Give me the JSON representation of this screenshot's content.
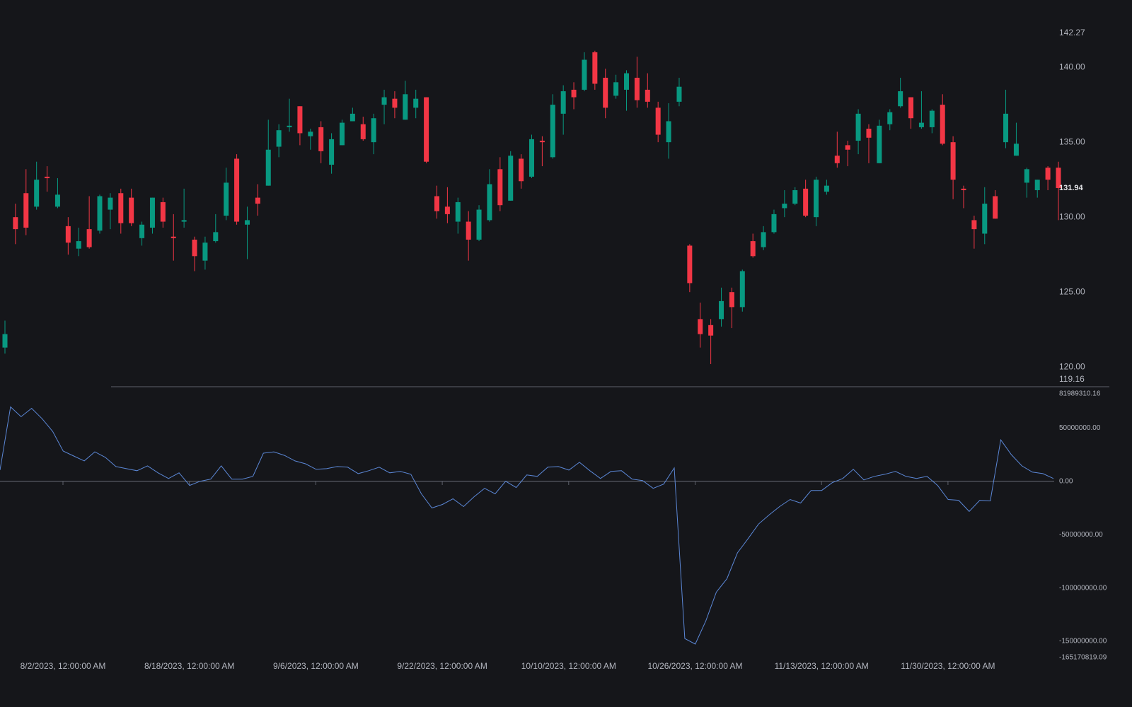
{
  "chart_data": [
    {
      "type": "candlestick",
      "up_color": "#089981",
      "down_color": "#f23645",
      "open": [
        121.3,
        130.0,
        131.6,
        130.7,
        132.7,
        130.7,
        129.4,
        127.9,
        129.2,
        129.1,
        130.5,
        131.6,
        131.3,
        128.6,
        129.3,
        131.0,
        128.7,
        129.7,
        128.5,
        127.1,
        128.4,
        130.1,
        133.9,
        129.5,
        131.3,
        132.1,
        134.7,
        136.0,
        137.4,
        135.4,
        136.0,
        133.5,
        134.8,
        136.4,
        136.2,
        135.0,
        137.5,
        137.9,
        136.5,
        137.3,
        138.0,
        131.4,
        130.7,
        129.7,
        129.7,
        128.5,
        129.8,
        133.2,
        131.1,
        133.9,
        132.7,
        135.1,
        134.0,
        136.9,
        138.5,
        138.5,
        141.0,
        139.3,
        138.1,
        138.5,
        139.3,
        138.5,
        137.3,
        135.0,
        137.7,
        128.1,
        123.2,
        122.8,
        123.2,
        125.0,
        124.0,
        128.4,
        128.0,
        129.0,
        130.6,
        130.9,
        131.9,
        130.0,
        131.7,
        134.1,
        134.8,
        135.1,
        135.9,
        133.6,
        136.2,
        137.4,
        138.0,
        136.0,
        136.0,
        137.5,
        135.0,
        131.9,
        129.8,
        128.9,
        131.4,
        135.0,
        134.1,
        132.3,
        131.8,
        133.3,
        133.3
      ],
      "high": [
        123.1,
        130.9,
        133.2,
        133.7,
        133.4,
        132.6,
        130.0,
        129.3,
        131.4,
        131.5,
        131.6,
        131.9,
        131.9,
        129.7,
        131.3,
        131.3,
        130.2,
        131.9,
        128.7,
        128.7,
        130.2,
        133.3,
        134.2,
        130.7,
        132.2,
        136.5,
        136.2,
        137.9,
        137.4,
        135.9,
        136.4,
        135.6,
        136.5,
        137.3,
        136.7,
        136.9,
        138.5,
        138.4,
        139.1,
        138.5,
        138.0,
        132.1,
        132.0,
        131.3,
        130.4,
        130.8,
        133.2,
        134.0,
        134.4,
        134.2,
        135.5,
        135.4,
        138.2,
        138.8,
        139.0,
        141.0,
        141.1,
        139.9,
        139.5,
        139.8,
        140.7,
        139.6,
        137.7,
        137.6,
        139.3,
        128.2,
        124.3,
        123.2,
        125.3,
        125.3,
        126.5,
        128.9,
        129.4,
        130.5,
        131.8,
        132.0,
        132.5,
        132.7,
        132.5,
        135.7,
        135.1,
        137.2,
        136.2,
        136.5,
        137.2,
        139.3,
        138.0,
        138.4,
        137.2,
        138.2,
        135.4,
        132.1,
        130.1,
        132.0,
        131.8,
        138.5,
        136.3,
        133.3,
        132.5,
        133.4,
        133.7
      ],
      "low": [
        120.9,
        128.2,
        128.8,
        130.5,
        131.7,
        130.6,
        127.5,
        127.4,
        127.9,
        128.9,
        129.2,
        128.9,
        129.4,
        128.1,
        128.9,
        129.3,
        127.1,
        129.3,
        126.4,
        126.5,
        128.3,
        129.8,
        129.5,
        127.2,
        130.1,
        132.1,
        134.0,
        135.7,
        134.8,
        134.5,
        133.6,
        132.9,
        134.8,
        136.4,
        135.1,
        134.2,
        136.2,
        136.6,
        136.5,
        136.6,
        133.6,
        129.9,
        129.6,
        128.9,
        127.1,
        128.4,
        129.7,
        130.4,
        131.1,
        131.9,
        132.6,
        133.4,
        133.9,
        135.5,
        137.2,
        138.4,
        138.5,
        136.6,
        137.9,
        137.1,
        137.3,
        137.3,
        135.0,
        133.9,
        137.4,
        125.0,
        121.3,
        120.2,
        122.7,
        122.6,
        123.7,
        127.3,
        127.8,
        128.9,
        130.0,
        130.8,
        130.0,
        129.4,
        131.5,
        133.3,
        133.4,
        134.2,
        133.6,
        133.6,
        135.8,
        137.3,
        135.9,
        135.9,
        135.6,
        134.8,
        131.2,
        130.6,
        127.9,
        128.2,
        129.9,
        134.6,
        134.1,
        131.3,
        131.3,
        131.8,
        129.8
      ],
      "close": [
        122.2,
        129.2,
        129.3,
        132.5,
        132.6,
        131.5,
        128.3,
        128.4,
        128.0,
        131.4,
        131.3,
        129.6,
        129.6,
        129.5,
        131.3,
        129.7,
        128.6,
        129.8,
        127.4,
        128.3,
        129.0,
        132.3,
        129.7,
        129.8,
        130.9,
        134.5,
        135.8,
        136.1,
        135.6,
        135.7,
        134.4,
        135.2,
        136.3,
        136.9,
        135.2,
        136.6,
        138.0,
        137.3,
        138.2,
        137.9,
        133.7,
        130.4,
        130.2,
        131.0,
        128.5,
        130.5,
        132.2,
        130.8,
        134.1,
        132.4,
        135.2,
        135.0,
        137.5,
        138.4,
        138.0,
        140.5,
        138.9,
        137.3,
        139.0,
        139.6,
        137.8,
        137.7,
        135.5,
        136.4,
        138.7,
        125.6,
        122.2,
        122.1,
        124.4,
        124.0,
        126.4,
        127.4,
        129.0,
        130.2,
        130.9,
        131.8,
        130.1,
        132.5,
        132.1,
        133.6,
        134.5,
        136.9,
        135.3,
        136.1,
        137.0,
        138.4,
        136.6,
        136.3,
        137.1,
        134.9,
        132.5,
        131.8,
        129.2,
        130.9,
        129.9,
        136.9,
        134.9,
        133.2,
        132.5,
        132.5,
        131.94
      ],
      "ylim": [
        119.16,
        142.27
      ],
      "yticks": [
        {
          "value": 119.16,
          "label": "119.16"
        },
        {
          "value": 120,
          "label": "120.00"
        },
        {
          "value": 125,
          "label": "125.00"
        },
        {
          "value": 130,
          "label": "130.00"
        },
        {
          "value": 135,
          "label": "135.00"
        },
        {
          "value": 140,
          "label": "140.00"
        },
        {
          "value": 142.27,
          "label": "142.27"
        }
      ],
      "xticks": [
        "8/2/2023, 12:00:00 AM",
        "8/18/2023, 12:00:00 AM",
        "9/6/2023, 12:00:00 AM",
        "9/22/2023, 12:00:00 AM",
        "10/10/2023, 12:00:00 AM",
        "10/26/2023, 12:00:00 AM",
        "11/13/2023, 12:00:00 AM",
        "11/30/2023, 12:00:00 AM"
      ]
    },
    {
      "type": "line",
      "series": [
        {
          "color": "#5b87d6",
          "values": [
            10500000,
            69700000,
            60500000,
            68400000,
            58600000,
            46700000,
            28300000,
            23700000,
            19100000,
            27600000,
            22400000,
            13800000,
            11800000,
            9900000,
            14500000,
            7900000,
            2600000,
            7900000,
            -3900000,
            0,
            2000000,
            14500000,
            2000000,
            2000000,
            4600000,
            26300000,
            27600000,
            24300000,
            19100000,
            16400000,
            11200000,
            11800000,
            13800000,
            13200000,
            7200000,
            9900000,
            13200000,
            7900000,
            9200000,
            6600000,
            -11800000,
            -25000000,
            -21700000,
            -16400000,
            -23700000,
            -14500000,
            -6600000,
            -11800000,
            0,
            -5900000,
            5900000,
            4600000,
            13200000,
            13800000,
            10500000,
            17800000,
            9900000,
            2600000,
            9200000,
            9900000,
            2000000,
            700000,
            -6600000,
            -2600000,
            12500000,
            -147400000,
            -152600000,
            -130900000,
            -103900000,
            -91400000,
            -67100000,
            -53900000,
            -40100000,
            -31600000,
            -23700000,
            -17100000,
            -20400000,
            -8600000,
            -8600000,
            -1300000,
            2600000,
            11200000,
            1300000,
            4600000,
            6600000,
            9200000,
            4600000,
            2600000,
            4600000,
            -3900000,
            -17100000,
            -17800000,
            -28300000,
            -17800000,
            -18400000,
            38800000,
            25000000,
            14500000,
            8600000,
            7200000,
            2600000
          ]
        }
      ],
      "ylim": [
        -165170819.09,
        81989310.16
      ],
      "yticks": [
        {
          "value": -165170819.09,
          "label": "-165170819.09"
        },
        {
          "value": -150000000,
          "label": "-150000000.00"
        },
        {
          "value": -100000000,
          "label": "-100000000.00"
        },
        {
          "value": -50000000,
          "label": "-50000000.00"
        },
        {
          "value": 0,
          "label": "0.00"
        },
        {
          "value": 50000000,
          "label": "50000000.00"
        },
        {
          "value": 81989310.16,
          "label": "81989310.16"
        }
      ]
    }
  ]
}
